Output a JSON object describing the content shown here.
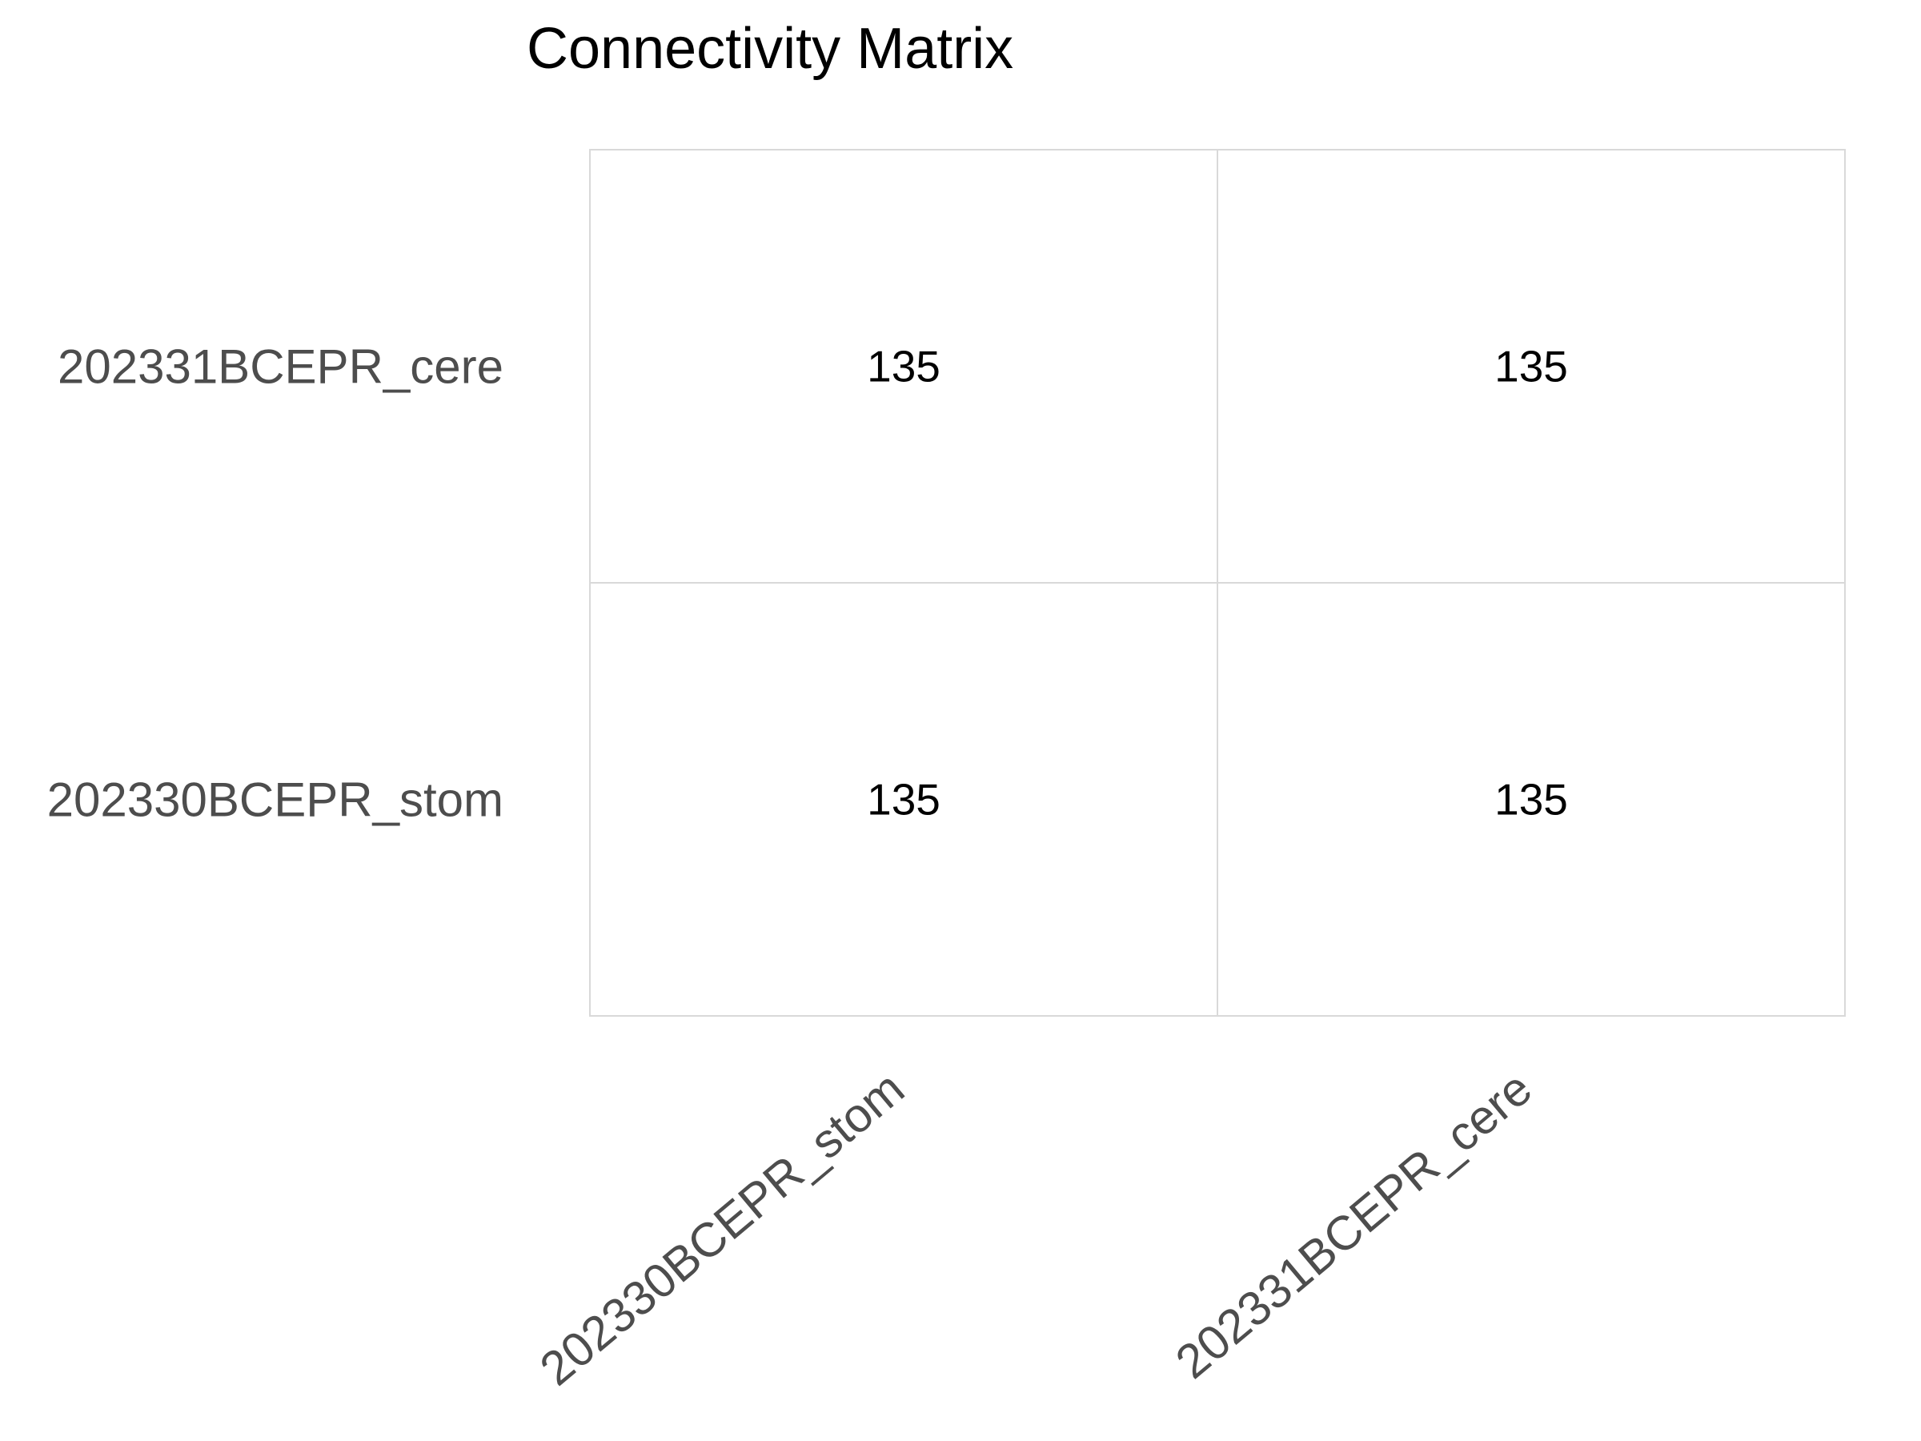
{
  "chart_data": {
    "type": "heatmap",
    "title": "Connectivity Matrix",
    "xlabel": "",
    "ylabel": "",
    "x_categories": [
      "202330BCEPR_stom",
      "202331BCEPR_cere"
    ],
    "y_categories": [
      "202331BCEPR_cere",
      "202330BCEPR_stom"
    ],
    "values": [
      [
        135,
        135
      ],
      [
        135,
        135
      ]
    ],
    "show_values": true,
    "grid": true,
    "legend": "none",
    "colors": {
      "cell_fill": "#ffffff",
      "cell_border": "#d9d9d9",
      "tick_text": "#4d4d4d",
      "value_text": "#000000",
      "title_text": "#000000"
    }
  }
}
